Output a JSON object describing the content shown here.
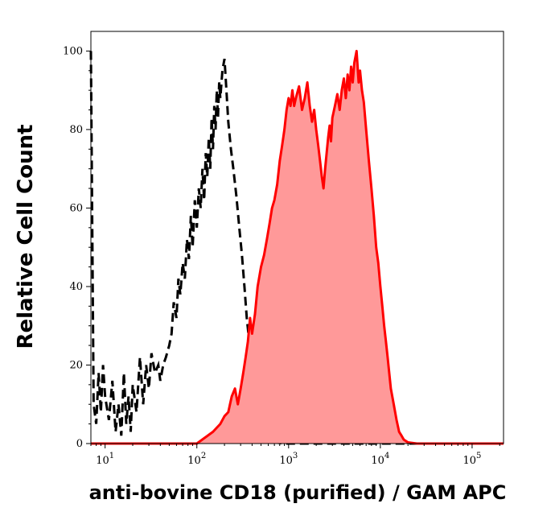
{
  "chart_data": {
    "type": "area",
    "title": "",
    "xlabel": "anti-bovine CD18 (purified) / GAM APC",
    "ylabel": "Relative Cell Count",
    "x_scale": "log",
    "xlim": [
      7,
      220000
    ],
    "ylim": [
      0,
      105
    ],
    "x_ticks": [
      {
        "value": 10,
        "base": "10",
        "exp": "1"
      },
      {
        "value": 100,
        "base": "10",
        "exp": "2"
      },
      {
        "value": 1000,
        "base": "10",
        "exp": "3"
      },
      {
        "value": 10000,
        "base": "10",
        "exp": "4"
      },
      {
        "value": 100000,
        "base": "10",
        "exp": "5"
      }
    ],
    "y_ticks": [
      0,
      20,
      40,
      60,
      80,
      100
    ],
    "grid": false,
    "legend": "none",
    "series": [
      {
        "style": "dashed-line",
        "color": "#000000",
        "x": [
          7,
          7.5,
          8,
          8.5,
          9,
          9.5,
          10,
          11,
          12,
          13,
          14,
          15,
          16,
          17,
          18,
          19,
          20,
          22,
          24,
          26,
          28,
          30,
          32,
          35,
          38,
          40,
          43,
          46,
          50,
          53,
          56,
          60,
          63,
          66,
          70,
          74,
          78,
          82,
          86,
          90,
          95,
          100,
          105,
          110,
          115,
          120,
          125,
          130,
          135,
          140,
          145,
          150,
          155,
          160,
          165,
          170,
          175,
          180,
          190,
          200,
          210,
          220,
          235,
          250,
          270,
          290,
          310,
          330,
          350,
          380,
          410,
          440,
          480,
          520,
          560,
          600,
          650,
          700,
          760,
          820,
          900,
          1000,
          1200,
          2000,
          10000,
          220000
        ],
        "y": [
          100,
          10,
          5,
          18,
          8,
          20,
          12,
          6,
          16,
          3,
          10,
          2,
          18,
          5,
          12,
          3,
          15,
          8,
          22,
          10,
          20,
          14,
          23,
          18,
          20,
          16,
          20,
          22,
          25,
          28,
          36,
          32,
          42,
          38,
          46,
          42,
          52,
          47,
          58,
          50,
          62,
          55,
          65,
          60,
          70,
          62,
          74,
          68,
          78,
          70,
          83,
          75,
          86,
          80,
          90,
          83,
          92,
          88,
          95,
          98,
          90,
          82,
          75,
          70,
          63,
          55,
          48,
          40,
          32,
          24,
          18,
          12,
          7,
          4,
          2,
          1,
          0.5,
          0.3,
          0.2,
          0.1,
          0,
          0,
          0,
          0,
          0,
          0
        ]
      },
      {
        "style": "filled-area",
        "color": "#ff0000",
        "fill": "#ff9999",
        "x": [
          7,
          100,
          150,
          180,
          200,
          220,
          240,
          260,
          280,
          300,
          320,
          340,
          360,
          380,
          400,
          430,
          460,
          500,
          540,
          580,
          620,
          660,
          700,
          750,
          800,
          850,
          900,
          950,
          1000,
          1050,
          1100,
          1150,
          1200,
          1300,
          1400,
          1500,
          1600,
          1700,
          1800,
          1900,
          2000,
          2100,
          2200,
          2300,
          2400,
          2500,
          2600,
          2700,
          2800,
          2900,
          3000,
          3200,
          3400,
          3600,
          3800,
          4000,
          4200,
          4400,
          4600,
          4800,
          5000,
          5200,
          5500,
          5800,
          6000,
          6300,
          6600,
          7000,
          7500,
          8000,
          8500,
          9000,
          9500,
          10000,
          10500,
          11000,
          11500,
          12000,
          12500,
          13000,
          14000,
          15000,
          16000,
          17000,
          18000,
          20000,
          25000,
          50000,
          100000,
          220000
        ],
        "y": [
          0,
          0,
          3,
          5,
          7,
          8,
          12,
          14,
          10,
          14,
          18,
          22,
          26,
          32,
          28,
          33,
          40,
          45,
          48,
          52,
          56,
          60,
          62,
          66,
          72,
          76,
          80,
          85,
          88,
          86,
          90,
          86,
          88,
          91,
          85,
          88,
          92,
          86,
          82,
          85,
          80,
          76,
          72,
          68,
          65,
          70,
          74,
          78,
          81,
          77,
          83,
          86,
          89,
          85,
          90,
          93,
          88,
          94,
          90,
          96,
          92,
          97,
          100,
          92,
          95,
          90,
          87,
          80,
          72,
          65,
          58,
          50,
          46,
          40,
          35,
          30,
          26,
          22,
          18,
          14,
          10,
          6,
          3,
          2,
          1,
          0.3,
          0,
          0,
          0,
          0
        ]
      }
    ]
  }
}
